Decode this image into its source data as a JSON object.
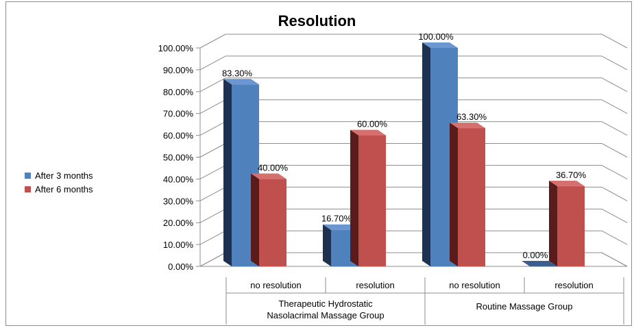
{
  "chart_data": {
    "type": "bar",
    "title": "Resolution",
    "ylim": [
      0,
      100
    ],
    "yticks": [
      "0.00%",
      "10.00%",
      "20.00%",
      "30.00%",
      "40.00%",
      "50.00%",
      "60.00%",
      "70.00%",
      "80.00%",
      "90.00%",
      "100.00%"
    ],
    "categories": [
      "no resolution",
      "resolution",
      "no resolution",
      "resolution"
    ],
    "groups": [
      {
        "label_lines": [
          "Therapeutic Hydrostatic",
          "Nasolacrimal Massage Group"
        ]
      },
      {
        "label_lines": [
          "Routine  Massage Group"
        ]
      }
    ],
    "series": [
      {
        "name": "After 3 months",
        "color": "#4f81bd",
        "values": [
          83.3,
          16.7,
          100.0,
          0.0
        ],
        "labels": [
          "83.30%",
          "16.70%",
          "100.00%",
          "0.00%"
        ]
      },
      {
        "name": "After 6 months",
        "color": "#c0504d",
        "values": [
          40.0,
          60.0,
          63.3,
          36.7
        ],
        "labels": [
          "40.00%",
          "60.00%",
          "63.30%",
          "36.70%"
        ]
      }
    ],
    "legend_position": "left",
    "grid": true
  }
}
